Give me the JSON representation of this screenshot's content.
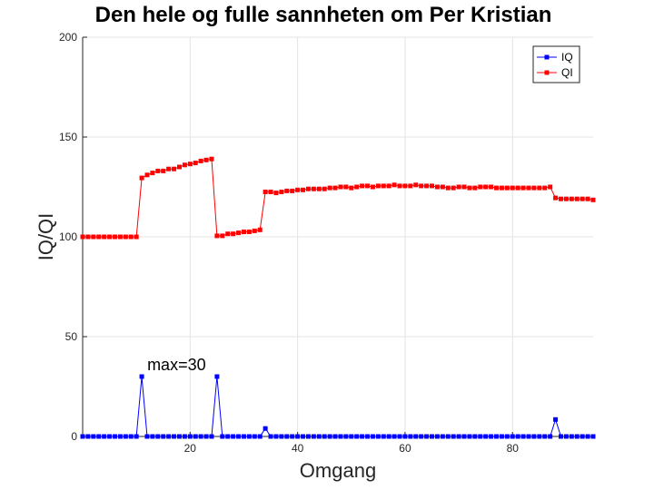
{
  "chart_data": {
    "type": "line",
    "title": "Den hele og fulle sannheten om Per Kristian",
    "xlabel": "Omgang",
    "ylabel": "IQ/QI",
    "xlim": [
      0,
      95
    ],
    "ylim": [
      0,
      200
    ],
    "xticks": [
      20,
      40,
      60,
      80
    ],
    "yticks": [
      0,
      50,
      100,
      150,
      200
    ],
    "grid": true,
    "legend_position": "top-right",
    "annotation": {
      "text": "max=30",
      "x": 11,
      "y": 36
    },
    "series": [
      {
        "name": "IQ",
        "color": "#0000ff",
        "marker": "square",
        "x": [
          0,
          1,
          2,
          3,
          4,
          5,
          6,
          7,
          8,
          9,
          10,
          11,
          12,
          13,
          14,
          15,
          16,
          17,
          18,
          19,
          20,
          21,
          22,
          23,
          24,
          25,
          26,
          27,
          28,
          29,
          30,
          31,
          32,
          33,
          34,
          35,
          36,
          37,
          38,
          39,
          40,
          41,
          42,
          43,
          44,
          45,
          46,
          47,
          48,
          49,
          50,
          51,
          52,
          53,
          54,
          55,
          56,
          57,
          58,
          59,
          60,
          61,
          62,
          63,
          64,
          65,
          66,
          67,
          68,
          69,
          70,
          71,
          72,
          73,
          74,
          75,
          76,
          77,
          78,
          79,
          80,
          81,
          82,
          83,
          84,
          85,
          86,
          87,
          88,
          89,
          90,
          91,
          92,
          93,
          94,
          95
        ],
        "y": [
          0,
          0,
          0,
          0,
          0,
          0,
          0,
          0,
          0,
          0,
          0,
          30,
          0,
          0,
          0,
          0,
          0,
          0,
          0,
          0,
          0,
          0,
          0,
          0,
          0,
          30,
          0,
          0,
          0,
          0,
          0,
          0,
          0,
          0,
          4,
          0,
          0,
          0,
          0,
          0,
          0,
          0,
          0,
          0,
          0,
          0,
          0,
          0,
          0,
          0,
          0,
          0,
          0,
          0,
          0,
          0,
          0,
          0,
          0,
          0,
          0,
          0,
          0,
          0,
          0,
          0,
          0,
          0,
          0,
          0,
          0,
          0,
          0,
          0,
          0,
          0,
          0,
          0,
          0,
          0,
          0,
          0,
          0,
          0,
          0,
          0,
          0,
          0,
          8.5,
          0,
          0,
          0,
          0,
          0,
          0,
          0
        ]
      },
      {
        "name": "QI",
        "color": "#ff0000",
        "marker": "square",
        "x": [
          0,
          1,
          2,
          3,
          4,
          5,
          6,
          7,
          8,
          9,
          10,
          11,
          12,
          13,
          14,
          15,
          16,
          17,
          18,
          19,
          20,
          21,
          22,
          23,
          24,
          25,
          26,
          27,
          28,
          29,
          30,
          31,
          32,
          33,
          34,
          35,
          36,
          37,
          38,
          39,
          40,
          41,
          42,
          43,
          44,
          45,
          46,
          47,
          48,
          49,
          50,
          51,
          52,
          53,
          54,
          55,
          56,
          57,
          58,
          59,
          60,
          61,
          62,
          63,
          64,
          65,
          66,
          67,
          68,
          69,
          70,
          71,
          72,
          73,
          74,
          75,
          76,
          77,
          78,
          79,
          80,
          81,
          82,
          83,
          84,
          85,
          86,
          87,
          88,
          89,
          90,
          91,
          92,
          93,
          94,
          95
        ],
        "y": [
          100,
          100,
          100,
          100,
          100,
          100,
          100,
          100,
          100,
          100,
          100,
          129.5,
          131,
          132,
          133,
          133,
          134,
          134,
          135,
          136,
          136.5,
          137,
          138,
          138.5,
          139,
          100.5,
          100.5,
          101.5,
          101.5,
          102,
          102.5,
          102.5,
          103,
          103.5,
          122.5,
          122.5,
          122,
          122.5,
          123,
          123,
          123.5,
          123.5,
          124,
          124,
          124,
          124,
          124.5,
          124.5,
          125,
          125,
          124.5,
          125,
          125.5,
          125.5,
          125,
          125.5,
          125.5,
          125.5,
          126,
          125.5,
          125.5,
          125.5,
          126,
          125.5,
          125.5,
          125.5,
          125,
          125,
          124.5,
          124.5,
          125,
          125,
          124.5,
          124.5,
          125,
          125,
          125,
          124.5,
          124.5,
          124.5,
          124.5,
          124.5,
          124.5,
          124.5,
          124.5,
          124.5,
          124.5,
          125,
          119.5,
          119,
          119,
          119,
          119,
          119,
          119,
          118.5
        ]
      }
    ]
  }
}
